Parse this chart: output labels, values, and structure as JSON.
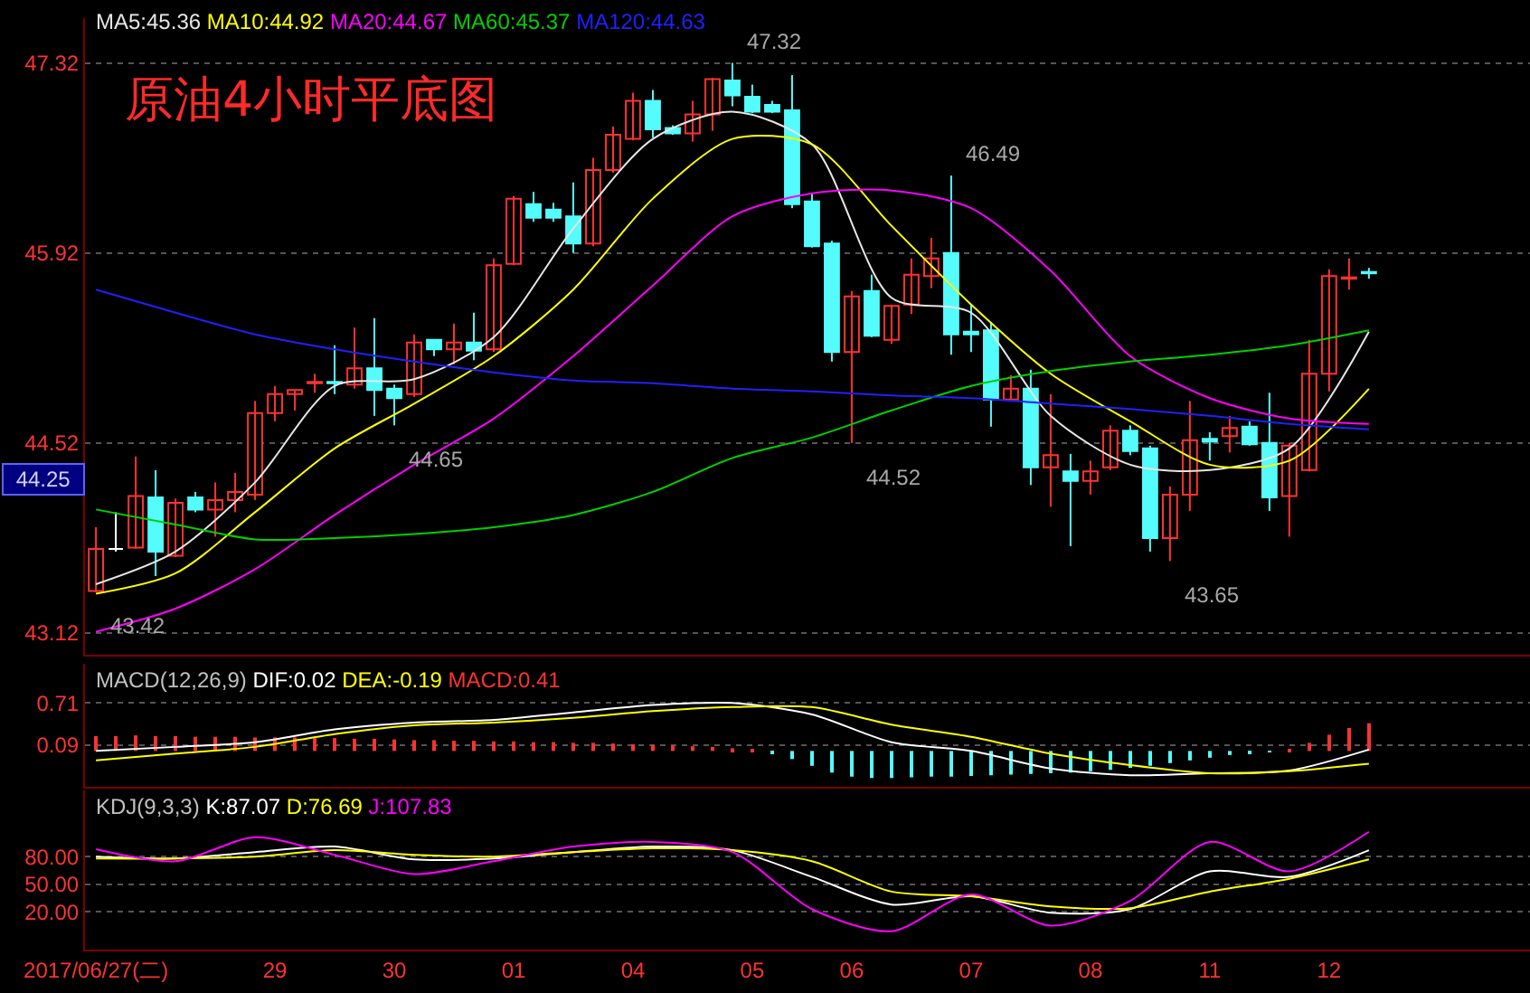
{
  "chart_data": [
    {
      "type": "candlestick",
      "title": "原油4小时平底图",
      "categories": [
        null,
        null,
        null,
        null,
        null,
        null,
        null,
        null,
        null,
        null,
        null,
        null,
        null,
        null,
        null,
        null,
        null,
        null,
        null,
        null,
        null,
        null,
        null,
        null,
        null,
        null,
        null,
        null,
        null,
        null,
        null,
        null,
        null,
        null,
        null,
        null,
        null,
        null,
        null,
        null,
        null,
        null,
        null,
        null,
        null,
        null,
        null,
        null,
        null,
        null,
        null,
        null,
        null,
        null,
        null,
        null,
        null,
        null,
        null,
        null,
        null,
        null,
        null,
        null,
        null
      ],
      "ohlc": [
        [
          43.43,
          43.9,
          43.42,
          43.74
        ],
        [
          43.74,
          44.01,
          43.72,
          43.74
        ],
        [
          43.75,
          44.42,
          43.74,
          44.13
        ],
        [
          44.12,
          44.32,
          43.54,
          43.72
        ],
        [
          43.69,
          44.11,
          43.68,
          44.08
        ],
        [
          44.12,
          44.16,
          44.01,
          44.03
        ],
        [
          44.03,
          44.23,
          43.83,
          44.1
        ],
        [
          44.1,
          44.3,
          44.01,
          44.16
        ],
        [
          44.14,
          44.83,
          44.1,
          44.74
        ],
        [
          44.74,
          44.94,
          44.68,
          44.88
        ],
        [
          44.88,
          44.91,
          44.76,
          44.91
        ],
        [
          44.96,
          45.03,
          44.89,
          44.97
        ],
        [
          44.97,
          45.24,
          44.88,
          44.96
        ],
        [
          44.95,
          45.37,
          44.92,
          45.07
        ],
        [
          45.07,
          45.44,
          44.72,
          44.91
        ],
        [
          44.92,
          44.95,
          44.65,
          44.85
        ],
        [
          44.88,
          45.32,
          44.86,
          45.26
        ],
        [
          45.28,
          45.28,
          45.16,
          45.21
        ],
        [
          45.21,
          45.4,
          45.1,
          45.26
        ],
        [
          45.26,
          45.48,
          45.13,
          45.2
        ],
        [
          45.21,
          45.88,
          45.19,
          45.83
        ],
        [
          45.84,
          46.34,
          45.83,
          46.32
        ],
        [
          46.28,
          46.37,
          46.15,
          46.18
        ],
        [
          46.24,
          46.29,
          46.15,
          46.18
        ],
        [
          46.19,
          46.44,
          45.92,
          45.99
        ],
        [
          45.99,
          46.62,
          45.97,
          46.53
        ],
        [
          46.53,
          46.85,
          46.51,
          46.79
        ],
        [
          46.76,
          47.1,
          46.75,
          47.04
        ],
        [
          47.04,
          47.12,
          46.77,
          46.83
        ],
        [
          46.84,
          46.86,
          46.79,
          46.8
        ],
        [
          46.8,
          47.04,
          46.74,
          46.94
        ],
        [
          46.94,
          47.21,
          46.82,
          47.2
        ],
        [
          47.19,
          47.32,
          47.0,
          47.08
        ],
        [
          47.07,
          47.16,
          46.95,
          46.96
        ],
        [
          47.01,
          47.04,
          46.95,
          46.96
        ],
        [
          46.97,
          47.23,
          46.25,
          46.28
        ],
        [
          46.3,
          46.36,
          45.96,
          45.97
        ],
        [
          45.99,
          46.01,
          45.12,
          45.19
        ],
        [
          45.19,
          45.64,
          44.52,
          45.6
        ],
        [
          45.64,
          45.76,
          45.3,
          45.31
        ],
        [
          45.28,
          45.54,
          45.25,
          45.53
        ],
        [
          45.54,
          45.88,
          45.47,
          45.76
        ],
        [
          45.75,
          46.03,
          45.66,
          45.88
        ],
        [
          45.92,
          46.49,
          45.17,
          45.32
        ],
        [
          45.34,
          45.54,
          45.19,
          45.32
        ],
        [
          45.35,
          45.41,
          44.64,
          44.84
        ],
        [
          44.84,
          45.02,
          44.83,
          44.92
        ],
        [
          44.92,
          45.06,
          44.21,
          44.34
        ],
        [
          44.34,
          44.88,
          44.05,
          44.43
        ],
        [
          44.31,
          44.44,
          43.76,
          44.24
        ],
        [
          44.24,
          44.39,
          44.14,
          44.31
        ],
        [
          44.34,
          44.65,
          44.32,
          44.61
        ],
        [
          44.61,
          44.65,
          44.43,
          44.46
        ],
        [
          44.48,
          44.5,
          43.72,
          43.82
        ],
        [
          43.82,
          44.2,
          43.65,
          44.14
        ],
        [
          44.14,
          44.83,
          44.02,
          44.54
        ],
        [
          44.55,
          44.6,
          44.39,
          44.53
        ],
        [
          44.57,
          44.72,
          44.45,
          44.63
        ],
        [
          44.64,
          44.68,
          44.5,
          44.51
        ],
        [
          44.52,
          44.89,
          44.02,
          44.12
        ],
        [
          44.13,
          44.52,
          43.83,
          44.5
        ],
        [
          44.32,
          45.28,
          44.31,
          45.03
        ],
        [
          45.03,
          45.8,
          44.9,
          45.75
        ],
        [
          45.73,
          45.88,
          45.65,
          45.74
        ],
        [
          45.78,
          45.81,
          45.73,
          45.77
        ]
      ],
      "colors": [
        "#ff3232",
        "#ffffff",
        "#ff3232",
        "#54fcfc",
        "#ff3232",
        "#54fcfc",
        "#ff3232",
        "#ff3232",
        "#ff3232",
        "#ff3232",
        "#ff3232",
        "#ff3232",
        "#54fcfc",
        "#ff3232",
        "#54fcfc",
        "#54fcfc",
        "#ff3232",
        "#54fcfc",
        "#ff3232",
        "#54fcfc",
        "#ff3232",
        "#ff3232",
        "#54fcfc",
        "#54fcfc",
        "#54fcfc",
        "#ff3232",
        "#ff3232",
        "#ff3232",
        "#54fcfc",
        "#54fcfc",
        "#ff3232",
        "#ff3232",
        "#54fcfc",
        "#54fcfc",
        "#54fcfc",
        "#54fcfc",
        "#54fcfc",
        "#54fcfc",
        "#ff3232",
        "#54fcfc",
        "#ff3232",
        "#ff3232",
        "#ff3232",
        "#54fcfc",
        "#54fcfc",
        "#54fcfc",
        "#ff3232",
        "#54fcfc",
        "#ff3232",
        "#54fcfc",
        "#ff3232",
        "#ff3232",
        "#54fcfc",
        "#54fcfc",
        "#ff3232",
        "#ff3232",
        "#54fcfc",
        "#ff3232",
        "#54fcfc",
        "#54fcfc",
        "#ff3232",
        "#ff3232",
        "#ff3232",
        "#ff3232",
        "#54fcfc"
      ],
      "series": [
        {
          "name": "MA5:45.36",
          "type": "line",
          "color": "#e6e6e6",
          "values": [
            43.48,
            null,
            null,
            null,
            43.72,
            null,
            null,
            null,
            44.23,
            null,
            null,
            null,
            44.94,
            null,
            null,
            null,
            44.99,
            null,
            null,
            null,
            45.3,
            null,
            null,
            null,
            46.1,
            null,
            null,
            null,
            46.76,
            null,
            null,
            null,
            46.96,
            null,
            null,
            null,
            46.72,
            null,
            null,
            null,
            45.59,
            null,
            null,
            null,
            45.48,
            null,
            null,
            null,
            44.72,
            null,
            null,
            null,
            44.36,
            null,
            null,
            null,
            44.32,
            null,
            null,
            null,
            44.48,
            null,
            null,
            null,
            45.34
          ]
        },
        {
          "name": "MA10:44.92",
          "type": "line",
          "color": "#ffff00",
          "values": [
            43.41,
            null,
            null,
            null,
            43.56,
            null,
            null,
            null,
            44.01,
            null,
            null,
            null,
            44.48,
            null,
            null,
            null,
            44.81,
            null,
            null,
            null,
            45.16,
            null,
            null,
            null,
            45.65,
            null,
            null,
            null,
            46.32,
            null,
            null,
            null,
            46.76,
            null,
            null,
            null,
            46.72,
            null,
            null,
            null,
            46.12,
            null,
            null,
            null,
            45.54,
            null,
            null,
            null,
            45.03,
            null,
            null,
            null,
            44.68,
            null,
            null,
            null,
            44.36,
            null,
            null,
            null,
            44.39,
            null,
            null,
            null,
            44.92
          ]
        },
        {
          "name": "MA20:44.67",
          "type": "line",
          "color": "#ff00ff",
          "values": [
            43.13,
            null,
            null,
            null,
            43.3,
            null,
            null,
            null,
            43.59,
            null,
            null,
            null,
            43.99,
            null,
            null,
            null,
            44.36,
            null,
            null,
            null,
            44.7,
            null,
            null,
            null,
            45.16,
            null,
            null,
            null,
            45.68,
            null,
            null,
            null,
            46.19,
            null,
            null,
            null,
            46.36,
            null,
            null,
            null,
            46.38,
            null,
            null,
            null,
            46.25,
            null,
            null,
            null,
            45.79,
            null,
            null,
            null,
            45.16,
            null,
            null,
            null,
            44.85,
            null,
            null,
            null,
            44.7,
            null,
            null,
            null,
            44.66
          ]
        },
        {
          "name": "MA60:45.37",
          "type": "line",
          "color": "#00d000",
          "values": [
            44.03,
            null,
            null,
            null,
            43.92,
            null,
            null,
            null,
            43.81,
            null,
            null,
            null,
            43.82,
            null,
            null,
            null,
            43.85,
            null,
            null,
            null,
            43.9,
            null,
            null,
            null,
            43.99,
            null,
            null,
            null,
            44.16,
            null,
            null,
            null,
            44.41,
            null,
            null,
            null,
            44.56,
            null,
            null,
            null,
            44.76,
            null,
            null,
            null,
            44.94,
            null,
            null,
            null,
            45.05,
            null,
            null,
            null,
            45.12,
            null,
            null,
            null,
            45.17,
            null,
            null,
            null,
            45.24,
            null,
            null,
            null,
            45.35
          ]
        },
        {
          "name": "MA120:44.63",
          "type": "line",
          "color": "#2020ff",
          "values": [
            45.65,
            null,
            null,
            null,
            45.48,
            null,
            null,
            null,
            45.32,
            null,
            null,
            null,
            45.21,
            null,
            null,
            null,
            45.12,
            null,
            null,
            null,
            45.04,
            null,
            null,
            null,
            44.98,
            null,
            null,
            null,
            44.96,
            null,
            null,
            null,
            44.92,
            null,
            null,
            null,
            44.9,
            null,
            null,
            null,
            44.87,
            null,
            null,
            null,
            44.85,
            null,
            null,
            null,
            44.81,
            null,
            null,
            null,
            44.77,
            null,
            null,
            null,
            44.72,
            null,
            null,
            null,
            44.66,
            null,
            null,
            null,
            44.62
          ]
        }
      ],
      "ylim": [
        42.96,
        47.65
      ],
      "yticks": [
        47.32,
        45.92,
        44.52,
        43.12
      ],
      "grid": "y",
      "tick_labels": "y",
      "annotations": [
        "47.32",
        "46.49",
        "44.65",
        "44.52",
        "43.42",
        "43.65",
        "44.25"
      ]
    },
    {
      "type": "bar",
      "title": "MACD(12,26,9)",
      "categories": [
        null,
        null,
        null,
        null,
        null,
        null,
        null,
        null,
        null,
        null,
        null,
        null,
        null,
        null,
        null,
        null,
        null,
        null,
        null,
        null,
        null,
        null,
        null,
        null,
        null,
        null,
        null,
        null,
        null,
        null,
        null,
        null,
        null,
        null,
        null,
        null,
        null,
        null,
        null,
        null,
        null,
        null,
        null,
        null,
        null,
        null,
        null,
        null,
        null,
        null,
        null,
        null,
        null,
        null,
        null,
        null,
        null,
        null,
        null,
        null,
        null,
        null,
        null,
        null,
        null
      ],
      "series": [
        {
          "name": "DIF:0.02",
          "type": "line",
          "color": "#ffffff",
          "values": [
            0.0,
            null,
            null,
            null,
            0.06,
            null,
            null,
            null,
            0.13,
            null,
            null,
            null,
            0.32,
            null,
            null,
            null,
            0.42,
            null,
            null,
            null,
            0.46,
            null,
            null,
            null,
            0.57,
            null,
            null,
            null,
            0.68,
            null,
            null,
            null,
            0.71,
            null,
            null,
            null,
            0.54,
            null,
            null,
            null,
            0.13,
            null,
            null,
            null,
            0.0,
            null,
            null,
            null,
            -0.26,
            null,
            null,
            null,
            -0.36,
            null,
            null,
            null,
            -0.33,
            null,
            null,
            null,
            -0.29,
            null,
            null,
            null,
            0.02
          ]
        },
        {
          "name": "DEA:-0.19",
          "type": "line",
          "color": "#ffff00",
          "values": [
            -0.14,
            null,
            null,
            null,
            -0.04,
            null,
            null,
            null,
            0.06,
            null,
            null,
            null,
            0.25,
            null,
            null,
            null,
            0.38,
            null,
            null,
            null,
            0.42,
            null,
            null,
            null,
            0.49,
            null,
            null,
            null,
            0.59,
            null,
            null,
            null,
            0.65,
            null,
            null,
            null,
            0.65,
            null,
            null,
            null,
            0.39,
            null,
            null,
            null,
            0.21,
            null,
            null,
            null,
            -0.04,
            null,
            null,
            null,
            -0.21,
            null,
            null,
            null,
            -0.33,
            null,
            null,
            null,
            -0.3,
            null,
            null,
            null,
            -0.19
          ]
        },
        {
          "name": "MACD:0.41",
          "type": "bar",
          "color": "#ff3232",
          "colors": [
            "#ff3232",
            "#ff3232",
            "#ff3232",
            "#ff3232",
            "#ff3232",
            "#ff3232",
            "#ff3232",
            "#ff3232",
            "#ff3232",
            "#ff3232",
            "#ff3232",
            "#ff3232",
            "#ff3232",
            "#ff3232",
            "#ff3232",
            "#ff3232",
            "#ff3232",
            "#ff3232",
            "#ff3232",
            "#ff3232",
            "#ff3232",
            "#ff3232",
            "#ff3232",
            "#ff3232",
            "#ff3232",
            "#ff3232",
            "#ff3232",
            "#ff3232",
            "#ff3232",
            "#ff3232",
            "#ff3232",
            "#ff3232",
            "#ff3232",
            "#ff3232",
            "#54fcfc",
            "#54fcfc",
            "#54fcfc",
            "#54fcfc",
            "#54fcfc",
            "#54fcfc",
            "#54fcfc",
            "#54fcfc",
            "#54fcfc",
            "#54fcfc",
            "#54fcfc",
            "#54fcfc",
            "#54fcfc",
            "#54fcfc",
            "#54fcfc",
            "#54fcfc",
            "#54fcfc",
            "#54fcfc",
            "#54fcfc",
            "#54fcfc",
            "#54fcfc",
            "#54fcfc",
            "#54fcfc",
            "#54fcfc",
            "#54fcfc",
            "#54fcfc",
            "#ff3232",
            "#ff3232",
            "#ff3232",
            "#ff3232",
            "#ff3232"
          ],
          "values": [
            0.22,
            0.22,
            0.23,
            0.22,
            0.22,
            0.21,
            0.21,
            0.21,
            0.2,
            0.2,
            0.2,
            0.19,
            0.19,
            0.18,
            0.18,
            0.17,
            0.16,
            0.16,
            0.15,
            0.15,
            0.14,
            0.14,
            0.13,
            0.13,
            0.12,
            0.12,
            0.11,
            0.1,
            0.09,
            0.08,
            0.07,
            0.06,
            0.04,
            0.02,
            -0.03,
            -0.12,
            -0.22,
            -0.32,
            -0.38,
            -0.4,
            -0.4,
            -0.39,
            -0.38,
            -0.38,
            -0.37,
            -0.36,
            -0.35,
            -0.34,
            -0.33,
            -0.32,
            -0.3,
            -0.28,
            -0.25,
            -0.22,
            -0.18,
            -0.14,
            -0.1,
            -0.06,
            -0.03,
            -0.01,
            0.01,
            0.12,
            0.24,
            0.34,
            0.41
          ]
        }
      ],
      "ylim": [
        -0.53,
        1.29
      ],
      "yticks": [
        0.71,
        0.09
      ],
      "grid": "y",
      "tick_labels": "y"
    },
    {
      "type": "line",
      "title": "KDJ(9,3,3)",
      "categories": [
        "2017/06/27(二)",
        null,
        null,
        null,
        null,
        null,
        null,
        null,
        null,
        "29",
        null,
        null,
        null,
        null,
        null,
        "30",
        null,
        null,
        null,
        null,
        null,
        "01",
        null,
        null,
        null,
        null,
        null,
        "04",
        null,
        null,
        null,
        null,
        null,
        "05",
        null,
        null,
        null,
        null,
        "06",
        null,
        null,
        null,
        null,
        null,
        "07",
        null,
        null,
        null,
        null,
        null,
        "08",
        null,
        null,
        null,
        null,
        null,
        "11",
        null,
        null,
        null,
        null,
        null,
        "12",
        null,
        null
      ],
      "series": [
        {
          "name": "K:87.07",
          "color": "#ffffff",
          "values": [
            80,
            null,
            null,
            null,
            78,
            null,
            null,
            null,
            85,
            null,
            null,
            null,
            91,
            null,
            null,
            null,
            77,
            null,
            null,
            null,
            78,
            null,
            null,
            null,
            85,
            null,
            null,
            null,
            91,
            null,
            null,
            null,
            87,
            null,
            null,
            null,
            58,
            null,
            null,
            null,
            28,
            null,
            null,
            null,
            37,
            null,
            null,
            null,
            19,
            null,
            null,
            null,
            23,
            null,
            null,
            null,
            64,
            null,
            null,
            null,
            58,
            null,
            null,
            null,
            87
          ]
        },
        {
          "name": "D:76.69",
          "color": "#ffff00",
          "values": [
            78,
            null,
            null,
            null,
            78,
            null,
            null,
            null,
            80,
            null,
            null,
            null,
            87,
            null,
            null,
            null,
            82,
            null,
            null,
            null,
            80,
            null,
            null,
            null,
            85,
            null,
            null,
            null,
            89,
            null,
            null,
            null,
            87,
            null,
            null,
            null,
            75,
            null,
            null,
            null,
            42,
            null,
            null,
            null,
            37,
            null,
            null,
            null,
            26,
            null,
            null,
            null,
            24,
            null,
            null,
            null,
            42,
            null,
            null,
            null,
            56,
            null,
            null,
            null,
            77
          ]
        },
        {
          "name": "J:107.83",
          "color": "#ff00ff",
          "values": [
            88,
            null,
            null,
            null,
            75,
            null,
            null,
            null,
            101,
            null,
            null,
            null,
            82,
            null,
            null,
            null,
            61,
            null,
            null,
            null,
            75,
            null,
            null,
            null,
            91,
            null,
            null,
            null,
            96,
            null,
            null,
            null,
            85,
            null,
            null,
            null,
            23,
            null,
            null,
            null,
            -1,
            null,
            null,
            null,
            39,
            null,
            null,
            null,
            5,
            null,
            null,
            null,
            32,
            null,
            null,
            null,
            96,
            null,
            null,
            null,
            64,
            null,
            null,
            null,
            107
          ]
        }
      ],
      "ylim": [
        -21,
        152
      ],
      "yticks": [
        {
          "value": 80,
          "label": "80.00"
        },
        {
          "value": 50,
          "label": "50.00"
        },
        {
          "value": 20,
          "label": "20.00"
        }
      ],
      "grid": "y"
    }
  ]
}
